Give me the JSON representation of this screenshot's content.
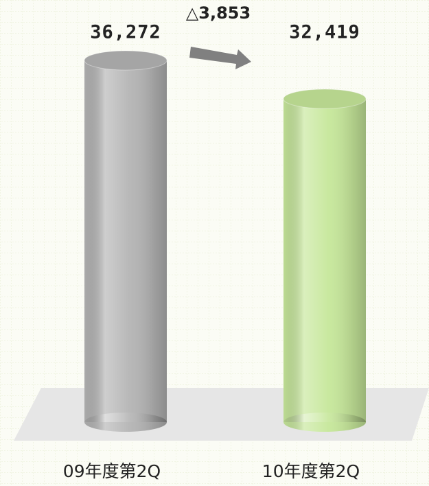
{
  "chart_data": {
    "type": "bar",
    "categories": [
      "09年度第2Q",
      "10年度第2Q"
    ],
    "values": [
      36272,
      32419
    ],
    "value_labels": [
      "36,272",
      "32,419"
    ],
    "colors": [
      "#b4b4b4",
      "#c6e79a"
    ],
    "annotation": "△3,853"
  }
}
